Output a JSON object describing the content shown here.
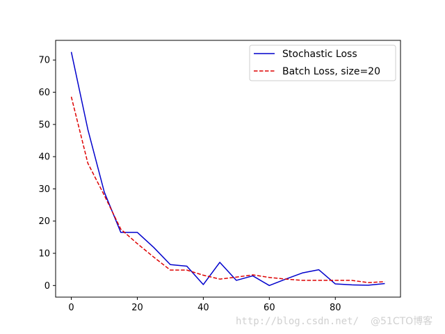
{
  "chart_data": {
    "type": "line",
    "title": "",
    "xlabel": "",
    "ylabel": "",
    "xlim": [
      -4.75,
      99.75
    ],
    "ylim": [
      -3.6,
      76.1
    ],
    "xticks": [
      0,
      20,
      40,
      60,
      80
    ],
    "yticks": [
      0,
      10,
      20,
      30,
      40,
      50,
      60,
      70
    ],
    "legend_position": "top-right",
    "grid": false,
    "series": [
      {
        "name": "Stochastic Loss",
        "color": "#0000cc",
        "style": "solid",
        "x": [
          0,
          5,
          10,
          15,
          20,
          25,
          30,
          35,
          40,
          45,
          50,
          55,
          60,
          65,
          70,
          75,
          80,
          85,
          90,
          95
        ],
        "y": [
          72.5,
          48.5,
          29.0,
          16.5,
          16.5,
          11.8,
          6.5,
          6.0,
          0.3,
          7.2,
          1.6,
          3.0,
          0.0,
          2.0,
          3.9,
          4.9,
          0.5,
          0.2,
          0.1,
          0.6
        ]
      },
      {
        "name": "Batch Loss, size=20",
        "color": "#dd0000",
        "style": "dashed",
        "x": [
          0,
          5,
          10,
          15,
          20,
          25,
          30,
          35,
          40,
          45,
          50,
          55,
          60,
          65,
          70,
          75,
          80,
          85,
          90,
          95
        ],
        "y": [
          58.6,
          38.0,
          28.0,
          17.5,
          13.0,
          8.8,
          4.8,
          4.8,
          3.2,
          2.0,
          2.6,
          3.3,
          2.5,
          2.0,
          1.6,
          1.6,
          1.6,
          1.6,
          0.9,
          1.2
        ]
      }
    ]
  },
  "watermark": {
    "url_text": "http://blog.csdn.net/",
    "brand_text": "@51CTO博客"
  }
}
